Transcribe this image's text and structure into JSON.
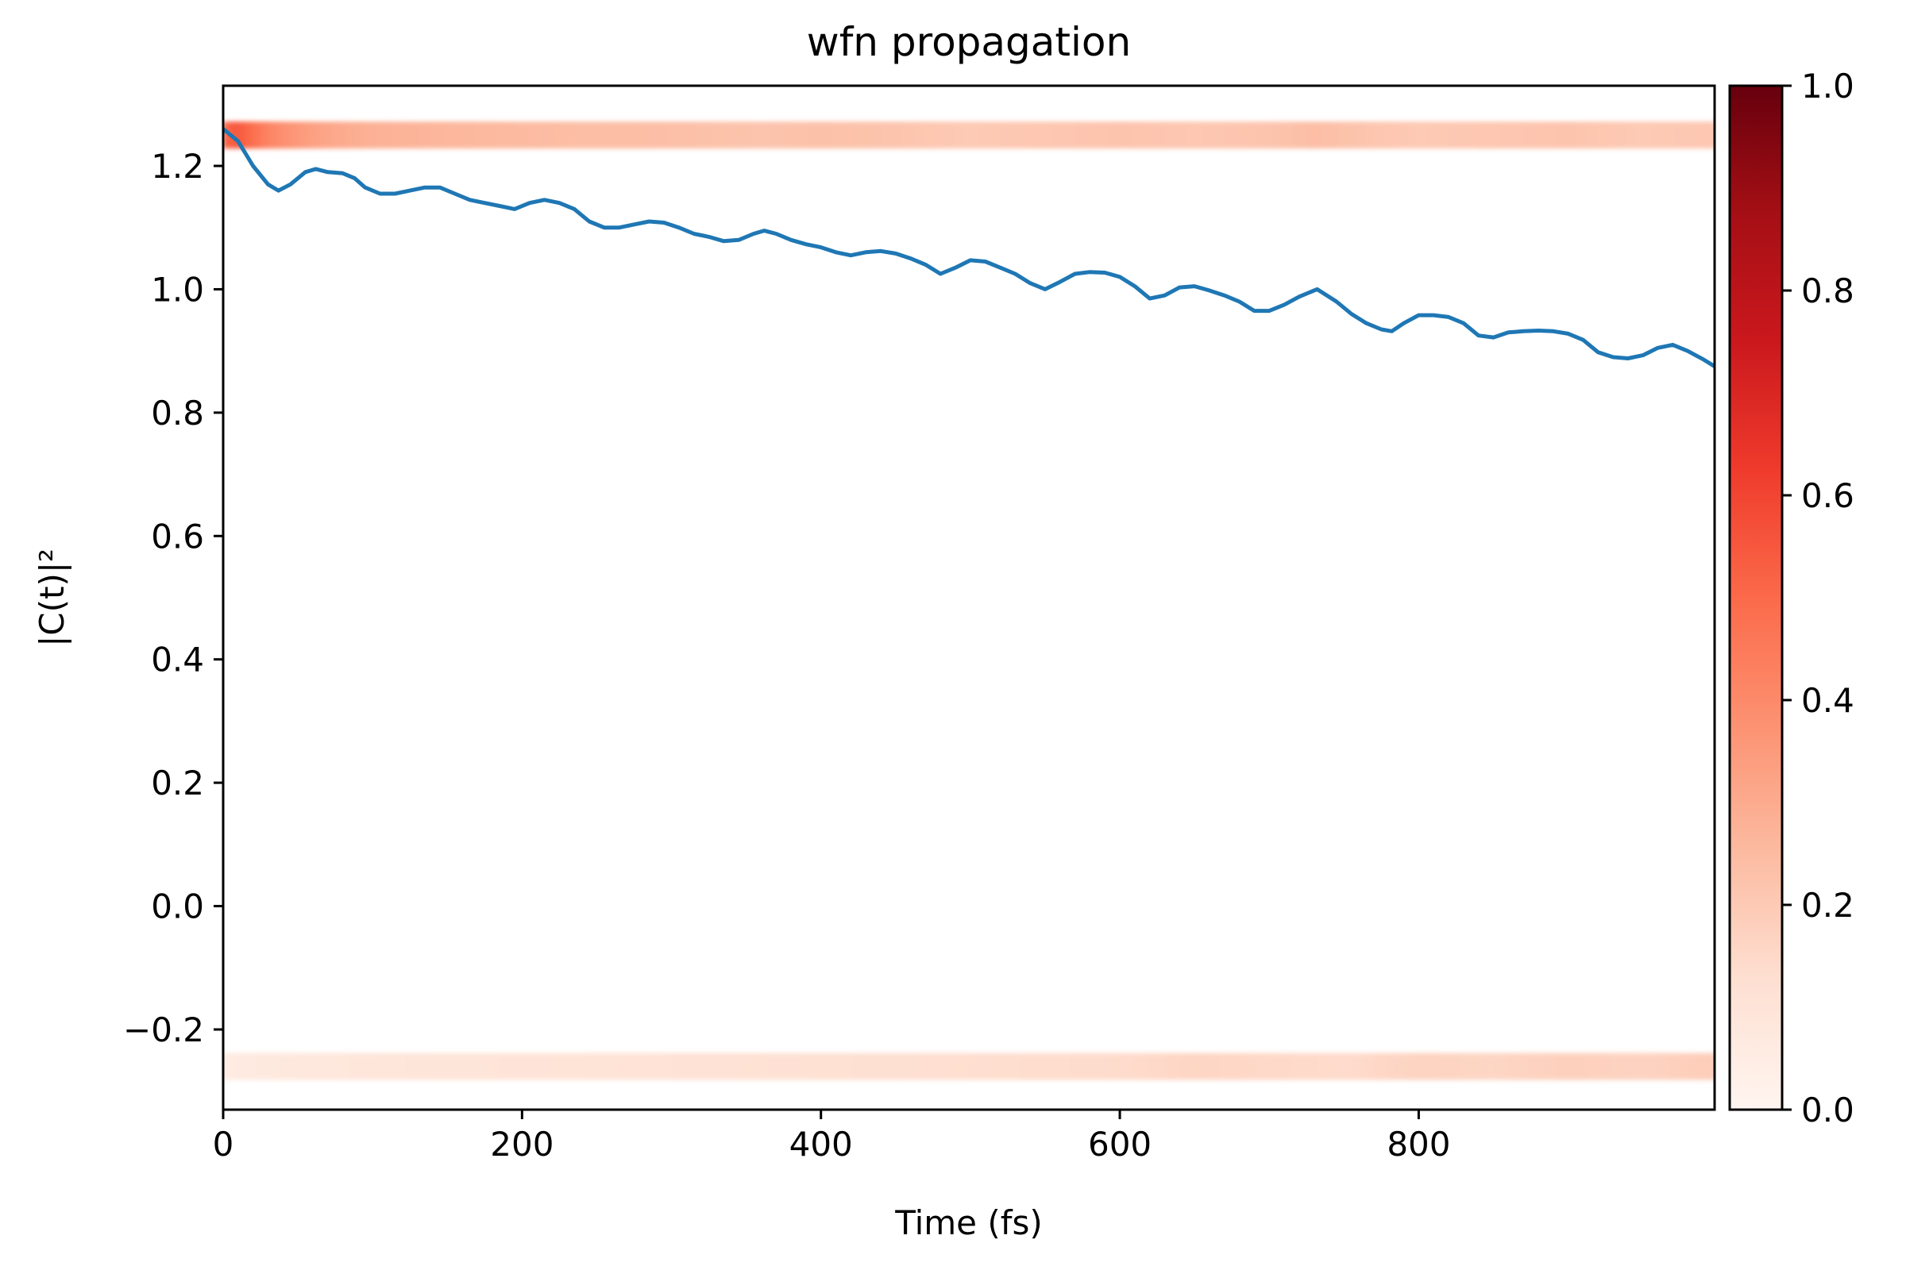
{
  "chart_data": {
    "type": "line",
    "title": "wfn propagation",
    "xlabel": "Time (fs)",
    "ylabel": "|C(t)|²",
    "xlim": [
      0,
      998
    ],
    "ylim": [
      -0.33,
      1.33
    ],
    "xticks": [
      0,
      200,
      400,
      600,
      800
    ],
    "xtick_labels": [
      "0",
      "200",
      "400",
      "600",
      "800"
    ],
    "yticks": [
      -0.2,
      0.0,
      0.2,
      0.4,
      0.6,
      0.8,
      1.0,
      1.2
    ],
    "ytick_labels": [
      "−0.2",
      "0.0",
      "0.2",
      "0.4",
      "0.6",
      "0.8",
      "1.0",
      "1.2"
    ],
    "grid": false,
    "series": [
      {
        "color": "#1f77b4",
        "x": [
          0,
          10,
          20,
          30,
          37,
          45,
          55,
          62,
          70,
          80,
          88,
          95,
          105,
          115,
          125,
          135,
          145,
          155,
          165,
          175,
          185,
          195,
          205,
          215,
          225,
          235,
          245,
          255,
          265,
          275,
          285,
          295,
          305,
          315,
          325,
          335,
          345,
          355,
          362,
          370,
          380,
          390,
          400,
          410,
          420,
          430,
          440,
          450,
          460,
          470,
          480,
          490,
          500,
          510,
          520,
          530,
          540,
          550,
          560,
          570,
          580,
          590,
          600,
          610,
          620,
          630,
          640,
          650,
          660,
          670,
          680,
          690,
          700,
          710,
          720,
          732,
          745,
          755,
          765,
          775,
          782,
          790,
          800,
          810,
          820,
          830,
          840,
          850,
          860,
          870,
          880,
          890,
          900,
          910,
          920,
          930,
          940,
          950,
          960,
          970,
          980,
          990,
          998
        ],
        "y": [
          1.26,
          1.24,
          1.2,
          1.17,
          1.16,
          1.17,
          1.19,
          1.195,
          1.19,
          1.188,
          1.18,
          1.165,
          1.155,
          1.155,
          1.16,
          1.165,
          1.165,
          1.155,
          1.145,
          1.14,
          1.135,
          1.13,
          1.14,
          1.145,
          1.14,
          1.13,
          1.11,
          1.1,
          1.1,
          1.105,
          1.11,
          1.108,
          1.1,
          1.09,
          1.085,
          1.078,
          1.08,
          1.09,
          1.095,
          1.09,
          1.08,
          1.073,
          1.068,
          1.06,
          1.055,
          1.06,
          1.062,
          1.058,
          1.05,
          1.04,
          1.025,
          1.035,
          1.047,
          1.045,
          1.035,
          1.025,
          1.01,
          1.0,
          1.012,
          1.025,
          1.028,
          1.027,
          1.02,
          1.005,
          0.985,
          0.99,
          1.003,
          1.005,
          0.998,
          0.99,
          0.98,
          0.965,
          0.965,
          0.975,
          0.988,
          1.0,
          0.98,
          0.96,
          0.945,
          0.935,
          0.932,
          0.945,
          0.958,
          0.958,
          0.955,
          0.945,
          0.925,
          0.922,
          0.93,
          0.932,
          0.933,
          0.932,
          0.928,
          0.918,
          0.898,
          0.89,
          0.888,
          0.893,
          0.905,
          0.91,
          0.9,
          0.887,
          0.875
        ]
      }
    ],
    "heat_bands": {
      "colormap": "Reds",
      "bands": [
        {
          "y": 1.25,
          "x": [
            0,
            10,
            20,
            30,
            40,
            60,
            80,
            100,
            130,
            160,
            200,
            240,
            280,
            320,
            360,
            400,
            450,
            500,
            550,
            600,
            650,
            700,
            730,
            760,
            800,
            850,
            900,
            950,
            998
          ],
          "intensity": [
            0.5,
            0.55,
            0.48,
            0.42,
            0.38,
            0.33,
            0.3,
            0.28,
            0.27,
            0.26,
            0.25,
            0.24,
            0.24,
            0.23,
            0.22,
            0.23,
            0.22,
            0.2,
            0.21,
            0.22,
            0.21,
            0.22,
            0.24,
            0.22,
            0.2,
            0.21,
            0.22,
            0.2,
            0.21
          ]
        },
        {
          "y": -0.26,
          "x": [
            0,
            50,
            100,
            200,
            300,
            400,
            500,
            600,
            650,
            700,
            750,
            800,
            850,
            900,
            950,
            998
          ],
          "intensity": [
            0.06,
            0.08,
            0.09,
            0.1,
            0.11,
            0.12,
            0.13,
            0.14,
            0.16,
            0.15,
            0.14,
            0.17,
            0.16,
            0.18,
            0.17,
            0.19
          ]
        }
      ]
    },
    "colorbar": {
      "range": [
        0.0,
        1.0
      ],
      "ticks": [
        0.0,
        0.2,
        0.4,
        0.6,
        0.8,
        1.0
      ],
      "tick_labels": [
        "0.0",
        "0.2",
        "0.4",
        "0.6",
        "0.8",
        "1.0"
      ],
      "colormap": "Reds"
    }
  }
}
